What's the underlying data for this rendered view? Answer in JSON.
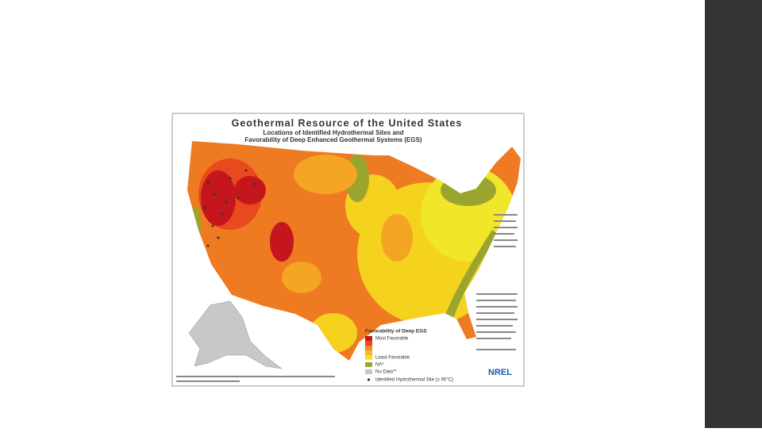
{
  "slide": {
    "map": {
      "title": "Geothermal Resource of the United States",
      "subtitle_lines": [
        "Locations of Identified Hydrothermal Sites and",
        "Favorability of Deep Enhanced Geothermal Systems (EGS)"
      ],
      "legend": {
        "title": "Favorability of Deep EGS",
        "scale_colors": [
          "#c4161c",
          "#e8491d",
          "#f28a1e",
          "#f7b52c",
          "#f9e21b"
        ],
        "most_label": "Most Favorable",
        "least_label": "Least Favorable",
        "items": [
          {
            "label": "NA*",
            "color": "#9aa52e"
          },
          {
            "label": "No Data**",
            "color": "#c8c8c8"
          }
        ],
        "site_label": "Identified Hydrothermal Site (≥ 90°C)"
      },
      "logo": "NREL"
    }
  }
}
